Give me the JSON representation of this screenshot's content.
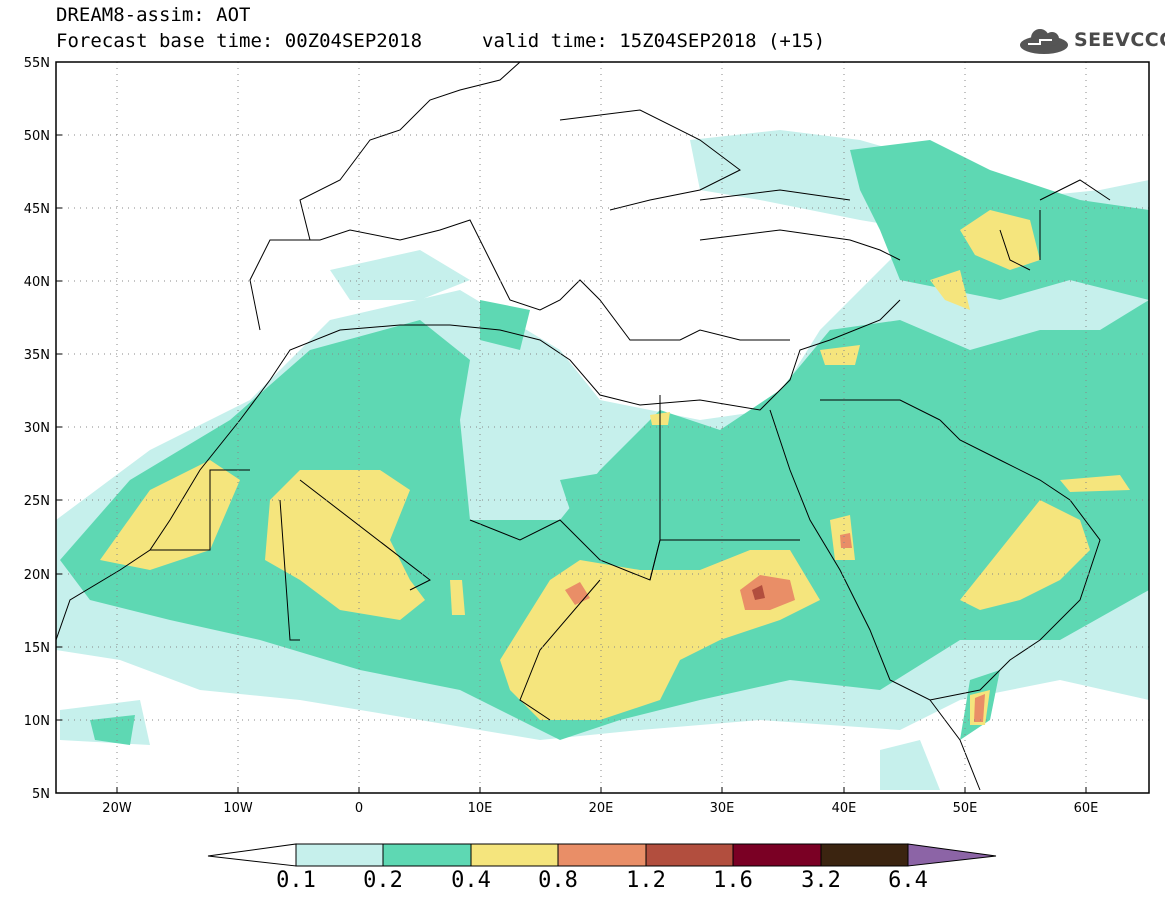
{
  "header": {
    "title_line1": "DREAM8-assim: AOT",
    "title_line2": "Forecast base time: 00Z04SEP2018",
    "valid_time": "valid time: 15Z04SEP2018 (+15)",
    "logo_text": "SEEVCCC",
    "logo_icon": "cloud-icon"
  },
  "map": {
    "extent": {
      "lon": [
        -25,
        65
      ],
      "lat": [
        5,
        55
      ]
    },
    "lat_labels": [
      "55N",
      "50N",
      "45N",
      "40N",
      "35N",
      "30N",
      "25N",
      "20N",
      "15N",
      "10N",
      "5N"
    ],
    "lon_labels": [
      "20W",
      "10W",
      "0",
      "10E",
      "20E",
      "30E",
      "40E",
      "50E",
      "60E"
    ]
  },
  "colorbar": {
    "labels": [
      "0.1",
      "0.2",
      "0.4",
      "0.8",
      "1.2",
      "1.6",
      "3.2",
      "6.4"
    ],
    "colors": [
      "#ffffff",
      "#c6f0ec",
      "#5ed8b3",
      "#f5e57d",
      "#e98e67",
      "#b24e3e",
      "#7a0024",
      "#3b2410",
      "#8c64a6"
    ]
  }
}
